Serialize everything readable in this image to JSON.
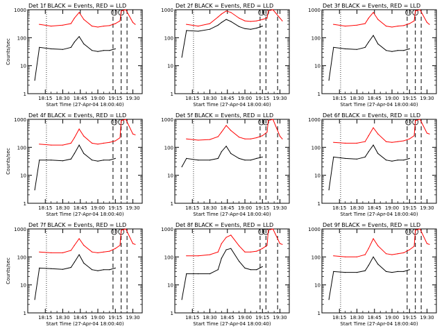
{
  "figure": {
    "colors": {
      "events": "#000000",
      "lld": "#ff0000",
      "background": "#ffffff"
    }
  },
  "chart_data": [
    {
      "type": "line",
      "title": "Det 1f BLACK = Events, RED = LLD",
      "xlabel": "Start Time (27-Apr-04 18:00:40)",
      "ylabel": "Counts/sec",
      "ylim": [
        1,
        1000
      ],
      "yscale": "log",
      "xticks": [
        "18:15",
        "18:30",
        "18:45",
        "19:00",
        "19:15",
        "19:30"
      ],
      "yticks": [
        "1",
        "10",
        "100",
        "1000"
      ],
      "x": [
        "18:02",
        "18:06",
        "18:10",
        "18:20",
        "18:30",
        "18:37",
        "18:40",
        "18:44",
        "18:48",
        "18:55",
        "19:00",
        "19:05",
        "19:10",
        "19:15",
        "19:19",
        "19:20",
        "19:24",
        "19:30",
        "19:32"
      ],
      "series": [
        {
          "name": "Events",
          "values": [
            null,
            3,
            45,
            40,
            38,
            45,
            70,
            110,
            60,
            35,
            32,
            35,
            35,
            40,
            null,
            null,
            null,
            null,
            null
          ]
        },
        {
          "name": "LLD",
          "values": [
            null,
            null,
            300,
            260,
            280,
            320,
            500,
            800,
            450,
            260,
            240,
            260,
            270,
            320,
            400,
            900,
            1000,
            350,
            300
          ]
        }
      ],
      "vlines": {
        "dotted": [
          "18:16"
        ],
        "dashed": [
          "19:13",
          "19:20",
          "19:25"
        ]
      }
    },
    {
      "type": "line",
      "title": "Det 2f BLACK = Events, RED = LLD",
      "xlabel": "Start Time (27-Apr-04 18:00:40)",
      "ylabel": "Counts/sec",
      "ylim": [
        1,
        1000
      ],
      "yscale": "log",
      "xticks": [
        "18:15",
        "18:30",
        "18:45",
        "19:00",
        "19:15",
        "19:30"
      ],
      "yticks": [
        "1",
        "10",
        "100",
        "1000"
      ],
      "x": [
        "18:02",
        "18:06",
        "18:10",
        "18:20",
        "18:30",
        "18:37",
        "18:40",
        "18:44",
        "18:48",
        "18:55",
        "19:00",
        "19:05",
        "19:10",
        "19:15",
        "19:19",
        "19:20",
        "19:24",
        "19:30",
        "19:32"
      ],
      "series": [
        {
          "name": "Events",
          "values": [
            null,
            20,
            180,
            170,
            200,
            280,
            350,
            450,
            380,
            250,
            210,
            200,
            220,
            260,
            null,
            null,
            null,
            null,
            null
          ]
        },
        {
          "name": "LLD",
          "values": [
            null,
            null,
            300,
            260,
            320,
            550,
            700,
            900,
            800,
            500,
            400,
            380,
            400,
            450,
            500,
            900,
            1000,
            500,
            400
          ]
        }
      ],
      "vlines": {
        "dotted": [
          "18:16"
        ],
        "dashed": [
          "19:13",
          "19:18",
          "19:28"
        ]
      }
    },
    {
      "type": "line",
      "title": "Det 3f BLACK = Events, RED = LLD",
      "xlabel": "Start Time (27-Apr-04 18:00:40)",
      "ylabel": "Counts/sec",
      "ylim": [
        1,
        1000
      ],
      "yscale": "log",
      "xticks": [
        "18:15",
        "18:30",
        "18:45",
        "19:00",
        "19:15",
        "19:30"
      ],
      "yticks": [
        "1",
        "10",
        "100",
        "1000"
      ],
      "x": [
        "18:02",
        "18:06",
        "18:10",
        "18:20",
        "18:30",
        "18:37",
        "18:40",
        "18:44",
        "18:48",
        "18:55",
        "19:00",
        "19:05",
        "19:10",
        "19:15",
        "19:19",
        "19:20",
        "19:24",
        "19:30",
        "19:32"
      ],
      "series": [
        {
          "name": "Events",
          "values": [
            null,
            3,
            45,
            40,
            38,
            45,
            70,
            120,
            60,
            35,
            32,
            35,
            35,
            40,
            null,
            null,
            null,
            null,
            null
          ]
        },
        {
          "name": "LLD",
          "values": [
            null,
            null,
            300,
            260,
            280,
            320,
            500,
            800,
            450,
            260,
            240,
            260,
            270,
            320,
            400,
            900,
            1000,
            350,
            300
          ]
        }
      ],
      "vlines": {
        "dotted": [
          "18:16"
        ],
        "dashed": [
          "19:13",
          "19:20",
          "19:25"
        ]
      }
    },
    {
      "type": "line",
      "title": "Det 4f BLACK = Events, RED = LLD",
      "xlabel": "Start Time (27-Apr-04 18:00:40)",
      "ylabel": "Counts/sec",
      "ylim": [
        1,
        1000
      ],
      "yscale": "log",
      "xticks": [
        "18:15",
        "18:30",
        "18:45",
        "19:00",
        "19:15",
        "19:30"
      ],
      "yticks": [
        "1",
        "10",
        "100",
        "1000"
      ],
      "x": [
        "18:02",
        "18:06",
        "18:10",
        "18:20",
        "18:30",
        "18:37",
        "18:40",
        "18:44",
        "18:48",
        "18:55",
        "19:00",
        "19:05",
        "19:10",
        "19:15",
        "19:19",
        "19:20",
        "19:24",
        "19:30",
        "19:32"
      ],
      "series": [
        {
          "name": "Events",
          "values": [
            null,
            3,
            35,
            35,
            33,
            38,
            60,
            120,
            60,
            35,
            32,
            35,
            35,
            40,
            null,
            null,
            null,
            null,
            null
          ]
        },
        {
          "name": "LLD",
          "values": [
            null,
            null,
            130,
            120,
            120,
            140,
            220,
            450,
            250,
            140,
            130,
            140,
            150,
            170,
            220,
            900,
            1000,
            300,
            280
          ]
        }
      ],
      "vlines": {
        "dotted": [
          "18:16"
        ],
        "dashed": [
          "19:13",
          "19:20",
          "19:25"
        ]
      }
    },
    {
      "type": "line",
      "title": "Det 5f BLACK = Events, RED = LLD",
      "xlabel": "Start Time (27-Apr-04 18:00:40)",
      "ylabel": "Counts/sec",
      "ylim": [
        1,
        1000
      ],
      "yscale": "log",
      "xticks": [
        "18:15",
        "18:30",
        "18:45",
        "19:00",
        "19:15",
        "19:30"
      ],
      "yticks": [
        "1",
        "10",
        "100",
        "1000"
      ],
      "x": [
        "18:02",
        "18:06",
        "18:10",
        "18:20",
        "18:30",
        "18:37",
        "18:40",
        "18:44",
        "18:48",
        "18:55",
        "19:00",
        "19:05",
        "19:10",
        "19:15",
        "19:19",
        "19:20",
        "19:24",
        "19:30",
        "19:32"
      ],
      "series": [
        {
          "name": "Events",
          "values": [
            null,
            20,
            40,
            35,
            35,
            40,
            70,
            110,
            60,
            40,
            35,
            35,
            40,
            45,
            null,
            null,
            null,
            null,
            null
          ]
        },
        {
          "name": "LLD",
          "values": [
            null,
            null,
            200,
            180,
            190,
            240,
            350,
            600,
            400,
            230,
            200,
            200,
            220,
            260,
            350,
            900,
            1000,
            250,
            200
          ]
        }
      ],
      "vlines": {
        "dotted": [
          "18:16"
        ],
        "dashed": [
          "19:13",
          "19:18",
          "19:28"
        ]
      }
    },
    {
      "type": "line",
      "title": "Det 6f BLACK = Events, RED = LLD",
      "xlabel": "Start Time (27-Apr-04 18:00:40)",
      "ylabel": "Counts/sec",
      "ylim": [
        1,
        1000
      ],
      "yscale": "log",
      "xticks": [
        "18:15",
        "18:30",
        "18:45",
        "19:00",
        "19:15",
        "19:30"
      ],
      "yticks": [
        "1",
        "10",
        "100",
        "1000"
      ],
      "x": [
        "18:02",
        "18:06",
        "18:10",
        "18:20",
        "18:30",
        "18:37",
        "18:40",
        "18:44",
        "18:48",
        "18:55",
        "19:00",
        "19:05",
        "19:10",
        "19:15",
        "19:19",
        "19:20",
        "19:24",
        "19:30",
        "19:32"
      ],
      "series": [
        {
          "name": "Events",
          "values": [
            null,
            3,
            45,
            40,
            38,
            45,
            70,
            120,
            60,
            35,
            32,
            35,
            35,
            40,
            null,
            null,
            null,
            null,
            null
          ]
        },
        {
          "name": "LLD",
          "values": [
            null,
            null,
            150,
            140,
            140,
            160,
            260,
            500,
            300,
            160,
            150,
            160,
            170,
            200,
            260,
            900,
            1000,
            320,
            300
          ]
        }
      ],
      "vlines": {
        "dotted": [
          "18:16"
        ],
        "dashed": [
          "19:13",
          "19:20",
          "19:25"
        ]
      }
    },
    {
      "type": "line",
      "title": "Det 7f BLACK = Events, RED = LLD",
      "xlabel": "Start Time (27-Apr-04 18:00:40)",
      "ylabel": "Counts/sec",
      "ylim": [
        1,
        1000
      ],
      "yscale": "log",
      "xticks": [
        "18:15",
        "18:30",
        "18:45",
        "19:00",
        "19:15",
        "19:30"
      ],
      "yticks": [
        "1",
        "10",
        "100",
        "1000"
      ],
      "x": [
        "18:02",
        "18:06",
        "18:10",
        "18:20",
        "18:30",
        "18:37",
        "18:40",
        "18:44",
        "18:48",
        "18:55",
        "19:00",
        "19:05",
        "19:10",
        "19:15",
        "19:19",
        "19:20",
        "19:24",
        "19:30",
        "19:32"
      ],
      "series": [
        {
          "name": "Events",
          "values": [
            null,
            3,
            40,
            38,
            36,
            42,
            65,
            120,
            60,
            35,
            32,
            35,
            35,
            40,
            null,
            null,
            null,
            null,
            null
          ]
        },
        {
          "name": "LLD",
          "values": [
            null,
            null,
            150,
            140,
            140,
            170,
            260,
            450,
            260,
            150,
            140,
            150,
            160,
            200,
            260,
            900,
            1000,
            300,
            280
          ]
        }
      ],
      "vlines": {
        "dotted": [
          "18:16"
        ],
        "dashed": [
          "19:13",
          "19:20",
          "19:25"
        ]
      }
    },
    {
      "type": "line",
      "title": "Det 8f BLACK = Events, RED = LLD",
      "xlabel": "Start Time (27-Apr-04 18:00:40)",
      "ylabel": "Counts/sec",
      "ylim": [
        1,
        1000
      ],
      "yscale": "log",
      "xticks": [
        "18:15",
        "18:30",
        "18:45",
        "19:00",
        "19:15",
        "19:30"
      ],
      "yticks": [
        "1",
        "10",
        "100",
        "1000"
      ],
      "x": [
        "18:02",
        "18:06",
        "18:10",
        "18:20",
        "18:30",
        "18:37",
        "18:40",
        "18:44",
        "18:48",
        "18:55",
        "19:00",
        "19:05",
        "19:10",
        "19:15",
        "19:19",
        "19:20",
        "19:24",
        "19:30",
        "19:32"
      ],
      "series": [
        {
          "name": "Events",
          "values": [
            null,
            3,
            25,
            25,
            25,
            35,
            90,
            180,
            200,
            70,
            40,
            35,
            35,
            45,
            null,
            null,
            null,
            null,
            null
          ]
        },
        {
          "name": "LLD",
          "values": [
            null,
            null,
            110,
            110,
            120,
            150,
            300,
            500,
            600,
            250,
            150,
            150,
            160,
            200,
            260,
            900,
            1000,
            300,
            280
          ]
        }
      ],
      "vlines": {
        "dotted": [
          "18:16"
        ],
        "dashed": [
          "19:13",
          "19:18",
          "19:28"
        ]
      }
    },
    {
      "type": "line",
      "title": "Det 9f BLACK = Events, RED = LLD",
      "xlabel": "Start Time (27-Apr-04 18:00:40)",
      "ylabel": "Counts/sec",
      "ylim": [
        1,
        1000
      ],
      "yscale": "log",
      "xticks": [
        "18:15",
        "18:30",
        "18:45",
        "19:00",
        "19:15",
        "19:30"
      ],
      "yticks": [
        "1",
        "10",
        "100",
        "1000"
      ],
      "x": [
        "18:02",
        "18:06",
        "18:10",
        "18:20",
        "18:30",
        "18:37",
        "18:40",
        "18:44",
        "18:48",
        "18:55",
        "19:00",
        "19:05",
        "19:10",
        "19:15",
        "19:19",
        "19:20",
        "19:24",
        "19:30",
        "19:32"
      ],
      "series": [
        {
          "name": "Events",
          "values": [
            null,
            3,
            30,
            28,
            28,
            32,
            50,
            100,
            55,
            30,
            28,
            30,
            30,
            35,
            null,
            null,
            null,
            null,
            null
          ]
        },
        {
          "name": "LLD",
          "values": [
            null,
            null,
            110,
            100,
            100,
            120,
            200,
            450,
            250,
            130,
            120,
            130,
            140,
            180,
            240,
            900,
            1000,
            300,
            280
          ]
        }
      ],
      "vlines": {
        "dotted": [
          "18:16"
        ],
        "dashed": [
          "19:13",
          "19:20",
          "19:25"
        ]
      }
    }
  ]
}
